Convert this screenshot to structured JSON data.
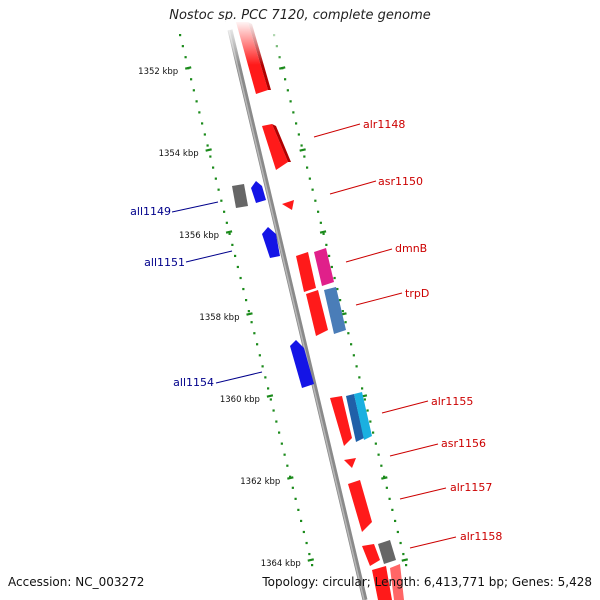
{
  "title": "Nostoc sp. PCC 7120, complete genome",
  "footer": {
    "accession": "Accession: NC_003272",
    "topology": "Topology: circular; Length: 6,413,771 bp; Genes: 5,428"
  },
  "axis": {
    "ticks": [
      "1352 kbp",
      "1354 kbp",
      "1356 kbp",
      "1358 kbp",
      "1360 kbp",
      "1362 kbp",
      "1364 kbp"
    ]
  },
  "genes": [
    {
      "name": "alr1148",
      "strand": "+",
      "color": "#ff1a1a"
    },
    {
      "name": "all1149",
      "strand": "-",
      "color": "#1414e6"
    },
    {
      "name": "asr1150",
      "strand": "+",
      "color": "#ff1a1a"
    },
    {
      "name": "all1151",
      "strand": "-",
      "color": "#1414e6"
    },
    {
      "name": "dmnB",
      "strand": "+",
      "color": "#e0208a"
    },
    {
      "name": "trpD",
      "strand": "+",
      "color": "#4a7db8"
    },
    {
      "name": "all1154",
      "strand": "-",
      "color": "#1414e6"
    },
    {
      "name": "alr1155",
      "strand": "+",
      "color": "#1ab0e0"
    },
    {
      "name": "asr1156",
      "strand": "+",
      "color": "#ff1a1a"
    },
    {
      "name": "alr1157",
      "strand": "+",
      "color": "#ff1a1a"
    },
    {
      "name": "alr1158",
      "strand": "+",
      "color": "#ff1a1a"
    }
  ],
  "colors": {
    "forward_label": "#cc0000",
    "reverse_label": "#00008b",
    "backbone": "#8a8a8a",
    "tick": "#1a8a1a",
    "gray_gene": "#666666"
  }
}
